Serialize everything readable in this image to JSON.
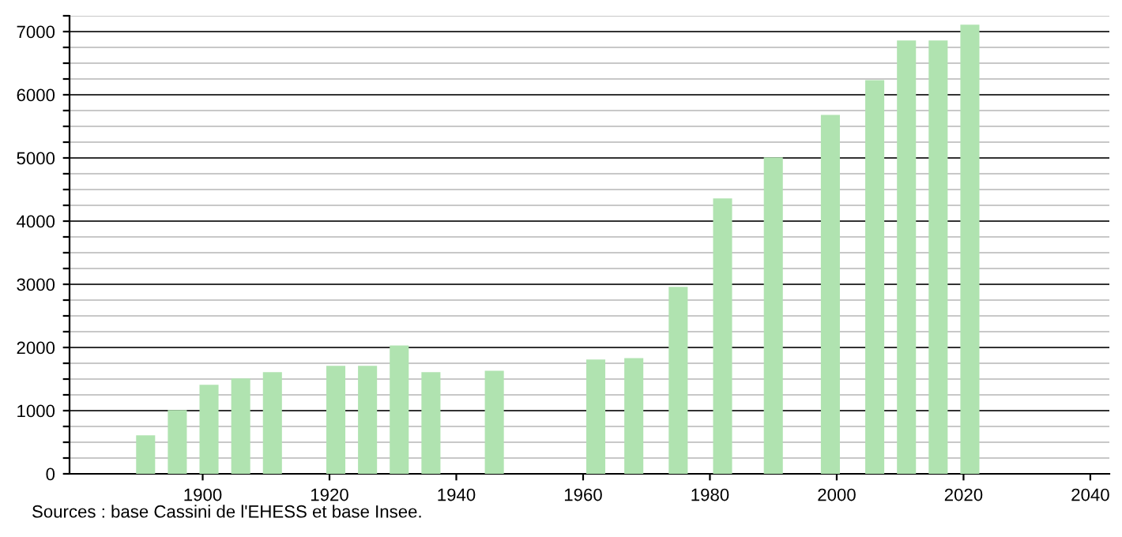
{
  "chart_data": {
    "type": "bar",
    "x": [
      1891,
      1896,
      1901,
      1906,
      1911,
      1921,
      1926,
      1931,
      1936,
      1946,
      1962,
      1968,
      1975,
      1982,
      1990,
      1999,
      2006,
      2011,
      2016,
      2021
    ],
    "values": [
      610,
      1010,
      1410,
      1510,
      1610,
      1710,
      1710,
      2030,
      1610,
      1630,
      1810,
      1830,
      2960,
      4360,
      5010,
      5680,
      6230,
      6860,
      6860,
      7110
    ],
    "color": "#b0e3b0",
    "xlim": [
      1879,
      2043
    ],
    "xticks": [
      1900,
      1920,
      1940,
      1960,
      1980,
      2000,
      2020,
      2040
    ],
    "ylim": [
      0,
      7250
    ],
    "yticks": [
      0,
      {
        "value": 250,
        "label": null
      },
      {
        "value": 500,
        "label": null
      },
      {
        "value": 750,
        "label": null
      },
      1000,
      {
        "value": 1250,
        "label": null
      },
      {
        "value": 1500,
        "label": null
      },
      {
        "value": 1750,
        "label": null
      },
      2000,
      {
        "value": 2250,
        "label": null
      },
      {
        "value": 2500,
        "label": null
      },
      {
        "value": 2750,
        "label": null
      },
      3000,
      {
        "value": 3250,
        "label": null
      },
      {
        "value": 3500,
        "label": null
      },
      {
        "value": 3750,
        "label": null
      },
      4000,
      {
        "value": 4250,
        "label": null
      },
      {
        "value": 4500,
        "label": null
      },
      {
        "value": 4750,
        "label": null
      },
      5000,
      {
        "value": 5250,
        "label": null
      },
      {
        "value": 5500,
        "label": null
      },
      {
        "value": 5750,
        "label": null
      },
      6000,
      {
        "value": 6250,
        "label": null
      },
      {
        "value": 6500,
        "label": null
      },
      {
        "value": 6750,
        "label": null
      },
      7000,
      {
        "value": 7250,
        "label": null
      }
    ],
    "grid": "y",
    "annotations": [
      "Sources : base Cassini de l'EHESS et base Insee."
    ]
  }
}
